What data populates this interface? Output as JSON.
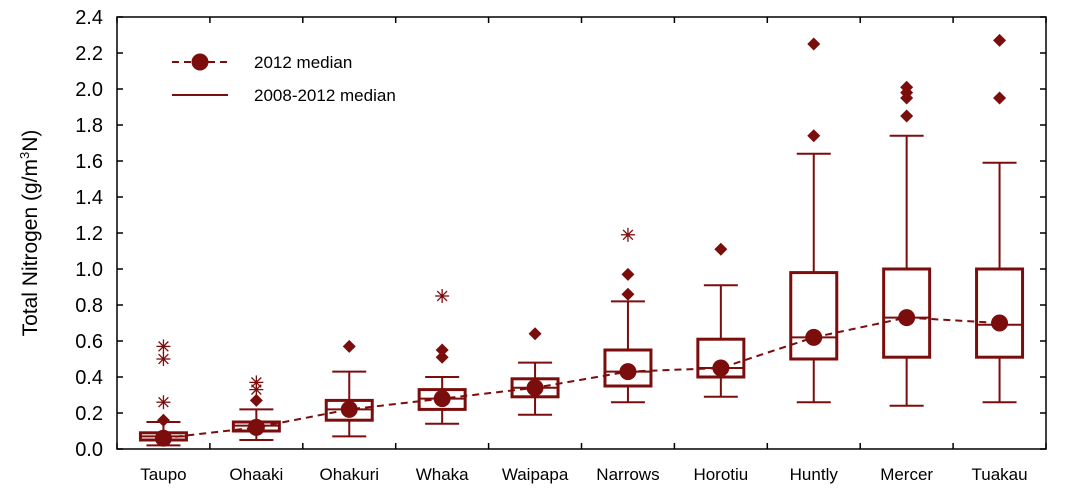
{
  "chart_data": {
    "type": "box",
    "ylabel": {
      "prefix": "Total Nitrogen (g/m",
      "superscript": "3",
      "suffix": "N)"
    },
    "ylim": [
      0,
      2.4
    ],
    "yticks": [
      "0.0",
      "0.2",
      "0.4",
      "0.6",
      "0.8",
      "1.0",
      "1.2",
      "1.4",
      "1.6",
      "1.8",
      "2.0",
      "2.2",
      "2.4"
    ],
    "grid": false,
    "legend": {
      "placement": "top-left",
      "entries": [
        {
          "label": "2012 median",
          "style": "dashed-line-with-dot"
        },
        {
          "label": "2008-2012 median",
          "style": "solid-line"
        }
      ]
    },
    "colors": {
      "series": "#7b0d0d",
      "axis": "#000000"
    },
    "categories": [
      "Taupo",
      "Ohaaki",
      "Ohakuri",
      "Whaka",
      "Waipapa",
      "Narrows",
      "Horotiu",
      "Huntly",
      "Mercer",
      "Tuakau"
    ],
    "boxes": [
      {
        "site": "Taupo",
        "whisker_low": 0.02,
        "q1": 0.05,
        "median": 0.07,
        "q3": 0.09,
        "whisker_high": 0.15,
        "outliers": [
          0.16
        ],
        "extremes": [
          0.26,
          0.5,
          0.57
        ]
      },
      {
        "site": "Ohaaki",
        "whisker_low": 0.05,
        "q1": 0.1,
        "median": 0.13,
        "q3": 0.15,
        "whisker_high": 0.22,
        "outliers": [
          0.27
        ],
        "extremes": [
          0.33,
          0.37
        ]
      },
      {
        "site": "Ohakuri",
        "whisker_low": 0.07,
        "q1": 0.16,
        "median": 0.22,
        "q3": 0.27,
        "whisker_high": 0.43,
        "outliers": [
          0.57
        ],
        "extremes": []
      },
      {
        "site": "Whaka",
        "whisker_low": 0.14,
        "q1": 0.22,
        "median": 0.28,
        "q3": 0.33,
        "whisker_high": 0.4,
        "outliers": [
          0.51,
          0.55
        ],
        "extremes": [
          0.85
        ]
      },
      {
        "site": "Waipapa",
        "whisker_low": 0.19,
        "q1": 0.29,
        "median": 0.34,
        "q3": 0.39,
        "whisker_high": 0.48,
        "outliers": [
          0.64
        ],
        "extremes": []
      },
      {
        "site": "Narrows",
        "whisker_low": 0.26,
        "q1": 0.35,
        "median": 0.43,
        "q3": 0.55,
        "whisker_high": 0.82,
        "outliers": [
          0.86,
          0.97
        ],
        "extremes": [
          1.19
        ]
      },
      {
        "site": "Horotiu",
        "whisker_low": 0.29,
        "q1": 0.4,
        "median": 0.45,
        "q3": 0.61,
        "whisker_high": 0.91,
        "outliers": [
          1.11
        ],
        "extremes": []
      },
      {
        "site": "Huntly",
        "whisker_low": 0.26,
        "q1": 0.5,
        "median": 0.62,
        "q3": 0.98,
        "whisker_high": 1.64,
        "outliers": [
          1.74,
          2.25
        ],
        "extremes": []
      },
      {
        "site": "Mercer",
        "whisker_low": 0.24,
        "q1": 0.51,
        "median": 0.73,
        "q3": 1.0,
        "whisker_high": 1.74,
        "outliers": [
          1.85,
          1.95,
          1.98,
          2.01
        ],
        "extremes": []
      },
      {
        "site": "Tuakau",
        "whisker_low": 0.26,
        "q1": 0.51,
        "median": 0.69,
        "q3": 1.0,
        "whisker_high": 1.59,
        "outliers": [
          1.95,
          2.27
        ],
        "extremes": []
      }
    ],
    "series": [
      {
        "name": "2012 median",
        "values": [
          0.06,
          0.12,
          0.22,
          0.28,
          0.34,
          0.43,
          0.45,
          0.62,
          0.73,
          0.7
        ]
      }
    ]
  }
}
